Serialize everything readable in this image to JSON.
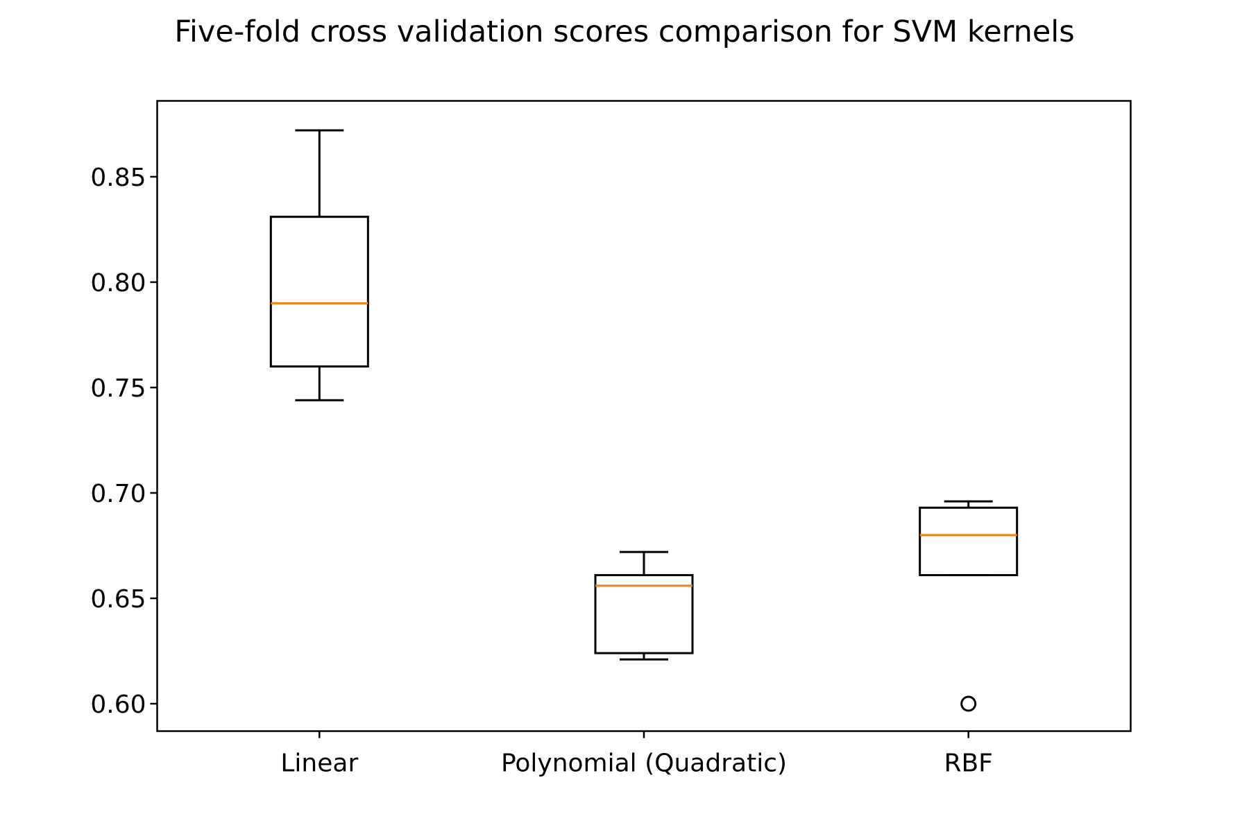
{
  "chart_data": {
    "type": "boxplot",
    "title": "Five-fold cross validation scores comparison for SVM kernels",
    "xlabel": "",
    "ylabel": "",
    "ylim": [
      0.587,
      0.886
    ],
    "yticks": [
      0.6,
      0.65,
      0.7,
      0.75,
      0.8,
      0.85
    ],
    "ytick_labels": [
      "0.60",
      "0.65",
      "0.70",
      "0.75",
      "0.80",
      "0.85"
    ],
    "categories": [
      "Linear",
      "Polynomial (Quadratic)",
      "RBF"
    ],
    "grid": false,
    "legend": "none",
    "colors": {
      "box": "#000000",
      "median": "#ff7f0e"
    },
    "series": [
      {
        "category": "Linear",
        "whisker_low": 0.744,
        "q1": 0.76,
        "median": 0.79,
        "q3": 0.831,
        "whisker_high": 0.872,
        "outliers": []
      },
      {
        "category": "Polynomial (Quadratic)",
        "whisker_low": 0.621,
        "q1": 0.624,
        "median": 0.656,
        "q3": 0.661,
        "whisker_high": 0.672,
        "outliers": []
      },
      {
        "category": "RBF",
        "whisker_low": 0.661,
        "q1": 0.661,
        "median": 0.68,
        "q3": 0.693,
        "whisker_high": 0.696,
        "outliers": [
          0.6
        ]
      }
    ]
  }
}
